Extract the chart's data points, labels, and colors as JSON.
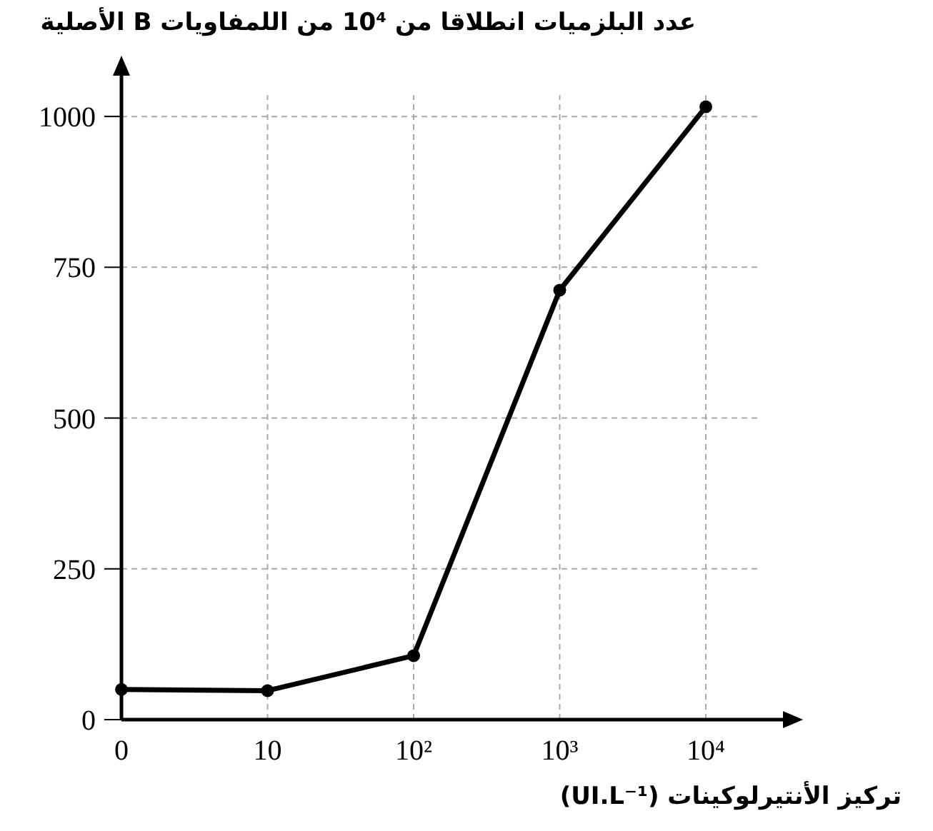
{
  "chart_data": {
    "type": "line",
    "title": "عدد البلزميات انطلاقا من 10⁴ من اللمفاويات B الأصلية",
    "xlabel": "تركيز الأنتيرلوكينات (UI.L⁻¹)",
    "categories": [
      "0",
      "10",
      "10²",
      "10³",
      "10⁴"
    ],
    "series": [
      {
        "color": "#000000",
        "values": [
          50,
          48,
          106,
          712,
          1016
        ]
      }
    ],
    "ylim": [
      0,
      1070
    ],
    "yticks": [
      0,
      250,
      500,
      750,
      1000
    ],
    "grid": true,
    "marker": "circle",
    "line_style": "solid"
  }
}
